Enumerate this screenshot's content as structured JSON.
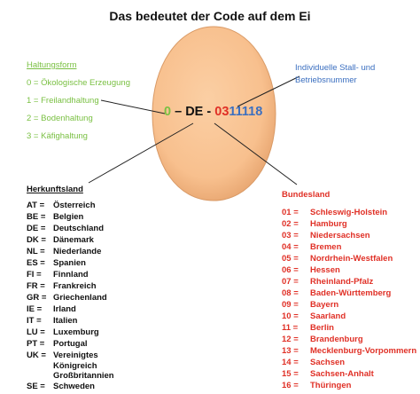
{
  "title": "Das bedeutet der Code auf dem Ei",
  "code": {
    "haltung": "0",
    "sep1": " – ",
    "land": "DE",
    "sep2": " - ",
    "bundesland": "03",
    "betrieb": "11118"
  },
  "haltungsform": {
    "heading": "Haltungsform",
    "items": [
      "0 = Ökologische Erzeugung",
      "1 = Freilandhaltung",
      "2 = Bodenhaltung",
      "3 = Käfighaltung"
    ]
  },
  "betrieb": {
    "line1": "Individuelle Stall- und",
    "line2": "Betriebsnummer"
  },
  "herkunftsland": {
    "heading": "Herkunftsland",
    "items": [
      {
        "code": "AT =",
        "name": "Österreich"
      },
      {
        "code": "BE =",
        "name": "Belgien"
      },
      {
        "code": "DE =",
        "name": "Deutschland"
      },
      {
        "code": "DK =",
        "name": "Dänemark"
      },
      {
        "code": "NL =",
        "name": "Niederlande"
      },
      {
        "code": "ES =",
        "name": "Spanien"
      },
      {
        "code": "FI =",
        "name": "Finnland"
      },
      {
        "code": "FR =",
        "name": "Frankreich"
      },
      {
        "code": "GR =",
        "name": "Griechenland"
      },
      {
        "code": "IE =",
        "name": "Irland"
      },
      {
        "code": "IT =",
        "name": "Italien"
      },
      {
        "code": "LU =",
        "name": "Luxemburg"
      },
      {
        "code": "PT =",
        "name": "Portugal"
      },
      {
        "code": "UK =",
        "name": "Vereinigtes"
      },
      {
        "code": "",
        "name": "Königreich"
      },
      {
        "code": "",
        "name": "Großbritannien"
      },
      {
        "code": "SE =",
        "name": "Schweden"
      }
    ]
  },
  "bundesland": {
    "heading": "Bundesland",
    "items": [
      {
        "code": "01 =",
        "name": "Schleswig-Holstein"
      },
      {
        "code": "02 =",
        "name": "Hamburg"
      },
      {
        "code": "03 =",
        "name": "Niedersachsen"
      },
      {
        "code": "04 =",
        "name": "Bremen"
      },
      {
        "code": "05 =",
        "name": "Nordrhein-Westfalen"
      },
      {
        "code": "06 =",
        "name": "Hessen"
      },
      {
        "code": "07 =",
        "name": "Rheinland-Pfalz"
      },
      {
        "code": "08 =",
        "name": "Baden-Württemberg"
      },
      {
        "code": "09 =",
        "name": "Bayern"
      },
      {
        "code": "10 =",
        "name": "Saarland"
      },
      {
        "code": "11 =",
        "name": "Berlin"
      },
      {
        "code": "12 =",
        "name": "Brandenburg"
      },
      {
        "code": "13 =",
        "name": "Mecklenburg-Vorpommern"
      },
      {
        "code": "14 =",
        "name": "Sachsen"
      },
      {
        "code": "15 =",
        "name": "Sachsen-Anhalt"
      },
      {
        "code": "16 =",
        "name": "Thüringen"
      }
    ]
  },
  "colors": {
    "egg_fill": "#f9c494",
    "egg_shade": "#e8a774",
    "green": "#7ac043",
    "blue": "#3b6fc0",
    "red": "#e03026"
  }
}
